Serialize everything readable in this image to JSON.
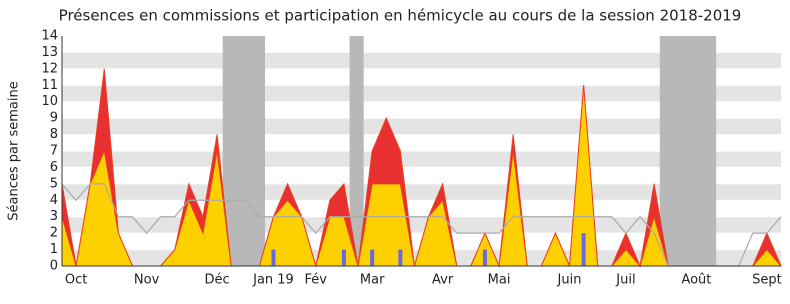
{
  "chart_data": {
    "type": "area",
    "title": "Présences en commissions et participation en hémicycle au cours de la session 2018-2019",
    "y_label": "Séances par semaine",
    "categories": [
      null,
      "Oct",
      null,
      null,
      null,
      null,
      "Nov",
      null,
      null,
      null,
      null,
      "Déc",
      null,
      null,
      null,
      "Jan 19",
      null,
      null,
      "Fév",
      null,
      null,
      null,
      "Mar",
      null,
      null,
      null,
      null,
      "Avr",
      null,
      null,
      null,
      "Mai",
      null,
      null,
      null,
      null,
      "Juin",
      null,
      null,
      null,
      "Juil",
      null,
      null,
      null,
      null,
      "Août",
      null,
      null,
      null,
      null,
      "Sept",
      null
    ],
    "series": [
      {
        "color": "#e83030",
        "values": [
          5,
          0,
          5,
          12,
          2,
          0,
          0,
          0,
          1,
          5,
          3,
          8,
          0,
          0,
          0,
          3,
          5,
          3,
          0,
          4,
          5,
          0,
          7,
          9,
          7,
          0,
          3,
          5,
          0,
          0,
          2,
          0,
          8,
          0,
          0,
          2,
          0,
          11,
          0,
          0,
          2,
          0,
          5,
          0,
          0,
          0,
          0,
          0,
          0,
          0,
          2,
          0
        ]
      },
      {
        "color": "#ffd000",
        "values": [
          3,
          0,
          5,
          7,
          2,
          0,
          0,
          0,
          1,
          4,
          2,
          7,
          0,
          0,
          0,
          3,
          4,
          3,
          0,
          3,
          3,
          0,
          5,
          5,
          5,
          0,
          3,
          4,
          0,
          0,
          2,
          0,
          7,
          0,
          0,
          2,
          0,
          11,
          0,
          0,
          1,
          0,
          3,
          0,
          0,
          0,
          0,
          0,
          0,
          0,
          1,
          0
        ]
      },
      {
        "color": "#aaaaaa",
        "style": "line",
        "values": [
          5,
          4,
          5,
          5,
          3,
          3,
          2,
          3,
          3,
          4,
          4,
          4,
          4,
          4,
          3,
          3,
          3,
          3,
          2,
          3,
          3,
          3,
          3,
          3,
          3,
          3,
          3,
          3,
          2,
          2,
          2,
          2,
          3,
          3,
          3,
          3,
          3,
          3,
          3,
          3,
          2,
          3,
          2,
          0,
          0,
          0,
          0,
          0,
          0,
          2,
          2,
          3
        ]
      },
      {
        "color": "#6a6ae0",
        "style": "bar",
        "values": [
          0,
          0,
          0,
          0,
          0,
          0,
          0,
          0,
          0,
          0,
          0,
          0,
          0,
          0,
          0,
          1,
          0,
          0,
          0,
          0,
          1,
          0,
          1,
          0,
          1,
          0,
          0,
          0,
          0,
          0,
          1,
          0,
          0,
          0,
          0,
          0,
          0,
          2,
          0,
          0,
          0,
          0,
          0,
          0,
          0,
          0,
          0,
          0,
          0,
          0,
          0,
          0
        ]
      }
    ],
    "shaded_ranges": [
      [
        11.4,
        14.4
      ],
      [
        20.4,
        21.4
      ],
      [
        42.4,
        46.4
      ]
    ],
    "shade_color": "#b8b8b8",
    "ylim": [
      0,
      14
    ],
    "yticks": [
      0,
      1,
      2,
      3,
      4,
      5,
      6,
      7,
      8,
      9,
      10,
      11,
      12,
      13,
      14
    ],
    "grid": true
  }
}
